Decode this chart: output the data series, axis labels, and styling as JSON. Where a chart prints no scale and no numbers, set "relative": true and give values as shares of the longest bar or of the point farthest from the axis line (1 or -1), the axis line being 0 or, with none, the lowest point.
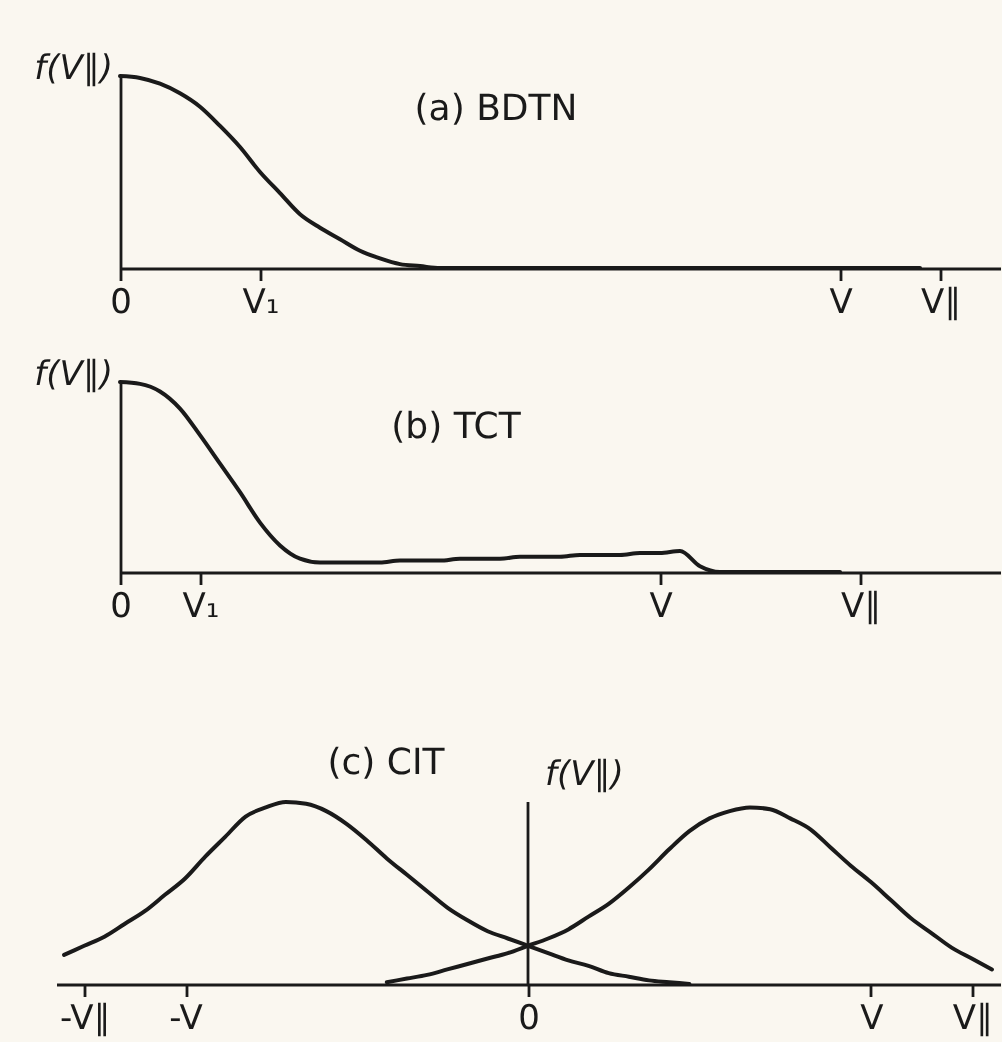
{
  "chart_data": [
    {
      "type": "line",
      "title": "(a) BDTN",
      "ylabel": "f(V∥)",
      "relative": true,
      "categories": [
        "0",
        null,
        null,
        null,
        null,
        null,
        null,
        "V₁",
        null,
        null,
        null,
        null,
        null,
        null,
        null,
        null,
        null,
        null,
        null,
        null,
        null,
        null,
        null,
        null,
        null,
        null,
        null,
        null,
        null,
        null,
        null,
        null,
        null,
        null,
        null,
        null,
        "V",
        null,
        null,
        null,
        null,
        "V∥",
        null,
        null,
        null
      ],
      "series": [
        {
          "color": "#1a1a1a",
          "values": [
            1.0,
            0.99,
            0.96,
            0.91,
            0.84,
            0.74,
            0.63,
            0.5,
            0.39,
            0.28,
            0.21,
            0.15,
            0.09,
            0.05,
            0.02,
            0.01,
            0,
            0,
            0,
            0,
            0,
            0,
            0,
            0,
            0,
            0,
            0,
            0,
            0,
            0,
            0,
            0,
            0,
            0,
            0,
            0,
            0,
            0,
            0,
            0,
            0,
            null,
            null,
            null,
            null
          ]
        }
      ]
    },
    {
      "type": "line",
      "title": "(b) TCT",
      "ylabel": "f(V∥)",
      "relative": true,
      "categories": [
        "0",
        null,
        null,
        null,
        "V₁",
        null,
        null,
        null,
        null,
        null,
        null,
        null,
        null,
        null,
        null,
        null,
        null,
        null,
        null,
        null,
        null,
        null,
        null,
        null,
        null,
        null,
        null,
        "V",
        null,
        null,
        null,
        null,
        null,
        null,
        null,
        null,
        null,
        "V∥",
        null,
        null,
        null,
        null,
        null,
        null,
        null
      ],
      "series": [
        {
          "color": "#1a1a1a",
          "values": [
            1.0,
            0.99,
            0.95,
            0.86,
            0.72,
            0.57,
            0.42,
            0.26,
            0.14,
            0.07,
            0.05,
            0.05,
            0.05,
            0.05,
            0.06,
            0.06,
            0.06,
            0.07,
            0.07,
            0.07,
            0.08,
            0.08,
            0.08,
            0.09,
            0.09,
            0.09,
            0.1,
            0.1,
            0.11,
            0.03,
            0,
            0,
            0,
            0,
            0,
            0,
            0,
            null,
            null,
            null,
            null,
            null,
            null,
            null,
            null
          ]
        }
      ]
    },
    {
      "type": "line",
      "title": "(c) CIT",
      "ylabel": "f(V∥)",
      "relative": true,
      "categories": [
        null,
        "-V∥",
        null,
        null,
        null,
        null,
        "-V",
        null,
        null,
        null,
        null,
        null,
        null,
        null,
        null,
        null,
        null,
        null,
        null,
        null,
        null,
        null,
        null,
        "0",
        null,
        null,
        null,
        null,
        null,
        null,
        null,
        null,
        null,
        null,
        null,
        null,
        null,
        null,
        null,
        null,
        "V",
        null,
        null,
        null,
        null,
        "V∥",
        null
      ],
      "ref_lines": [
        {
          "axis": "x",
          "value": "0"
        }
      ],
      "series": [
        {
          "color": "#1a1a1a",
          "values": [
            0.16,
            0.21,
            0.26,
            0.33,
            0.4,
            0.49,
            0.58,
            0.7,
            0.81,
            0.92,
            0.97,
            1.0,
            0.99,
            0.95,
            0.88,
            0.79,
            0.69,
            0.6,
            0.51,
            0.42,
            0.35,
            0.29,
            0.25,
            0.21,
            0.17,
            0.13,
            0.1,
            0.06,
            0.04,
            0.02,
            0.01,
            0,
            null,
            null,
            null,
            null,
            null,
            null,
            null,
            null,
            null,
            null,
            null,
            null,
            null,
            null,
            null
          ]
        },
        {
          "color": "#1a1a1a",
          "values": [
            null,
            null,
            null,
            null,
            null,
            null,
            null,
            null,
            null,
            null,
            null,
            null,
            null,
            null,
            null,
            null,
            0.01,
            0.03,
            0.05,
            0.08,
            0.11,
            0.14,
            0.17,
            0.21,
            0.25,
            0.3,
            0.37,
            0.44,
            0.53,
            0.63,
            0.74,
            0.84,
            0.91,
            0.95,
            0.97,
            0.96,
            0.91,
            0.85,
            0.75,
            0.65,
            0.56,
            0.46,
            0.36,
            0.28,
            0.2,
            0.14,
            0.08
          ]
        }
      ]
    }
  ]
}
